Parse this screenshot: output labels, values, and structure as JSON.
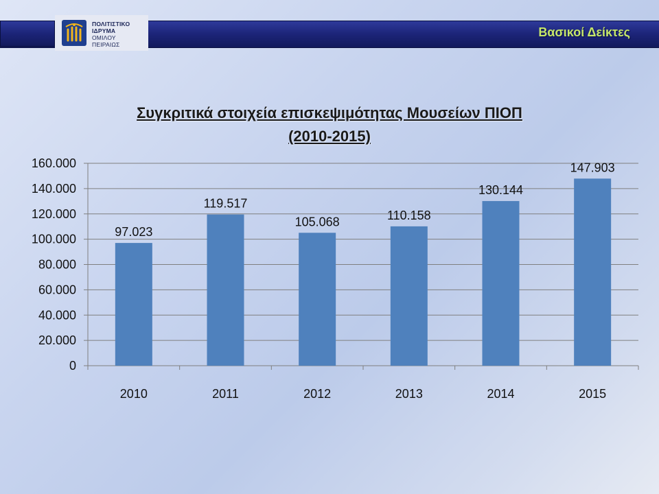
{
  "header": {
    "section_title": "Βασικοί Δείκτες",
    "logo_lines": [
      "ΠΟΛΙΤΙΣΤΙΚΟ",
      "ΙΔΡΥΜΑ",
      "ΟΜΙΛΟΥ",
      "ΠΕΙΡΑΙΩΣ"
    ]
  },
  "colors": {
    "bar": "#4f81bd",
    "header_bar": "#1c2478",
    "section_title": "#c6e76a"
  },
  "chart_data": {
    "type": "bar",
    "title_line1": "Συγκριτικά στοιχεία επισκεψιμότητας Μουσείων ΠΙΟΠ",
    "title_line2": "(2010-2015)",
    "categories": [
      "2010",
      "2011",
      "2012",
      "2013",
      "2014",
      "2015"
    ],
    "values": [
      97023,
      119517,
      105068,
      110158,
      130144,
      147903
    ],
    "value_labels": [
      "97.023",
      "119.517",
      "105.068",
      "110.158",
      "130.144",
      "147.903"
    ],
    "y_ticks": [
      "0",
      "20.000",
      "40.000",
      "60.000",
      "80.000",
      "100.000",
      "120.000",
      "140.000",
      "160.000"
    ],
    "ylim": [
      0,
      160000
    ],
    "y_step": 20000,
    "grid": true,
    "legend": "none"
  }
}
